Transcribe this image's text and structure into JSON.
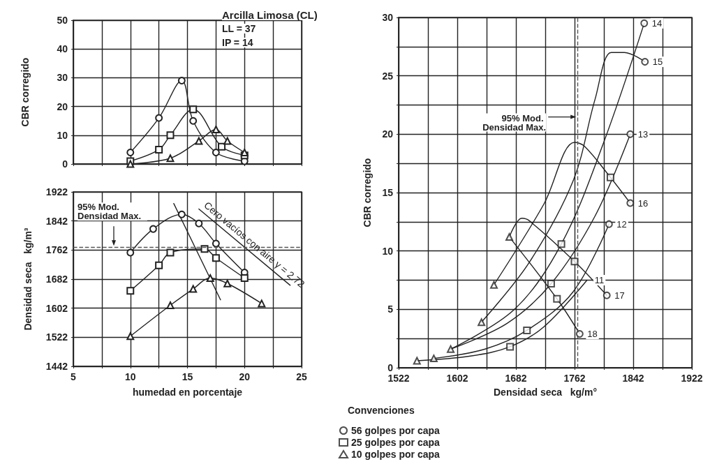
{
  "chart_data": [
    {
      "type": "line",
      "ylabel": "CBR corregido",
      "annotations": [
        "Arcilla Limosa (CL)",
        "LL = 37",
        "IP = 14"
      ],
      "xlim": [
        5,
        25
      ],
      "ylim": [
        0,
        50
      ],
      "xticks": [
        5,
        {
          "value": 7.5,
          "label": null
        },
        10,
        {
          "value": 12.5,
          "label": null
        },
        15,
        {
          "value": 17.5,
          "label": null
        },
        20,
        {
          "value": 22.5,
          "label": null
        },
        25
      ],
      "yticks": [
        0,
        10,
        20,
        30,
        40,
        50
      ],
      "tick_labels": "y",
      "grid": true,
      "series": [
        {
          "marker": "circle",
          "color": "#222222",
          "x": [
            10,
            12.5,
            14.5,
            15.5,
            17.5,
            20
          ],
          "values": [
            4,
            16,
            29,
            15,
            4,
            1
          ]
        },
        {
          "marker": "square",
          "color": "#222222",
          "x": [
            10,
            12.5,
            13.5,
            15.5,
            18,
            20
          ],
          "values": [
            1,
            5,
            10,
            19,
            6,
            3
          ]
        },
        {
          "marker": "triangle",
          "color": "#222222",
          "x": [
            10,
            13.5,
            16,
            17.5,
            18.5,
            20
          ],
          "values": [
            0,
            2,
            8,
            12,
            8,
            4
          ]
        }
      ]
    },
    {
      "type": "line",
      "xlabel": "humedad en porcentaje",
      "ylabel": "Densidad seca   kg/m³",
      "xlim": [
        5,
        25
      ],
      "ylim": [
        1442,
        1922
      ],
      "xticks": [
        5,
        {
          "value": 7.5,
          "label": null
        },
        10,
        {
          "value": 12.5,
          "label": null
        },
        15,
        {
          "value": 17.5,
          "label": null
        },
        20,
        {
          "value": 22.5,
          "label": null
        },
        25
      ],
      "yticks": [
        1442,
        1522,
        1602,
        1682,
        1762,
        1842,
        1922
      ],
      "grid": true,
      "annotations": [
        "Cero vacíos con aire γ = 2.72"
      ],
      "ref_lines": [
        {
          "axis": "y",
          "value": 1770,
          "label": "95% Mod. Densidad Max.",
          "line_style": "dashed",
          "color": "#555555"
        }
      ],
      "series": [
        {
          "marker": "circle",
          "color": "#222222",
          "x": [
            10,
            12,
            14.5,
            16,
            17.5,
            20
          ],
          "values": [
            1755,
            1820,
            1860,
            1835,
            1780,
            1700
          ]
        },
        {
          "marker": "square",
          "color": "#222222",
          "x": [
            10,
            12.5,
            13.5,
            16.5,
            17.5,
            20
          ],
          "values": [
            1650,
            1720,
            1755,
            1765,
            1740,
            1685
          ]
        },
        {
          "marker": "triangle",
          "color": "#222222",
          "x": [
            10,
            13.5,
            15.5,
            17,
            18.5,
            21.5
          ],
          "values": [
            1525,
            1610,
            1655,
            1685,
            1670,
            1615
          ]
        },
        {
          "marker": "none",
          "color": "#222222",
          "x": [
            16,
            24
          ],
          "values": [
            1875,
            1665
          ]
        },
        {
          "marker": "none",
          "color": "#222222",
          "x": [
            13.8,
            17.9
          ],
          "values": [
            1890,
            1625
          ]
        }
      ]
    },
    {
      "type": "line",
      "xlabel": "Densidad seca   kg/m°",
      "ylabel": "CBR corregido",
      "xlim": [
        1522,
        1922
      ],
      "ylim": [
        0,
        30
      ],
      "xticks": [
        1522,
        {
          "value": 1562,
          "label": null
        },
        1602,
        {
          "value": 1642,
          "label": null
        },
        1682,
        {
          "value": 1722,
          "label": null
        },
        1762,
        {
          "value": 1802,
          "label": null
        },
        1842,
        {
          "value": 1882,
          "label": null
        },
        1922
      ],
      "yticks": [
        0,
        {
          "value": 2.5,
          "label": null
        },
        5,
        {
          "value": 7.5,
          "label": null
        },
        10,
        {
          "value": 12.5,
          "label": null
        },
        15,
        {
          "value": 17.5,
          "label": null
        },
        20,
        {
          "value": 22.5,
          "label": null
        },
        25,
        {
          "value": 27.5,
          "label": null
        },
        30
      ],
      "grid": true,
      "legend": "bottom",
      "legend_title": "Convenciones",
      "ref_lines": [
        {
          "axis": "x",
          "value": 1766,
          "label": "95% Mod. Densidad Max.",
          "line_style": "dashed",
          "color": "#555555"
        }
      ],
      "series": [
        {
          "name": "11",
          "marker": "none",
          "color": "#222222",
          "x": [
            1547,
            1620,
            1674,
            1720,
            1779
          ],
          "values": [
            0.6,
            1.0,
            1.8,
            3.5,
            7.5
          ]
        },
        {
          "name": "12",
          "marker": "none",
          "color": "#222222",
          "x": [
            1570,
            1640,
            1697,
            1760,
            1809
          ],
          "values": [
            0.8,
            1.6,
            3.2,
            6.5,
            12.3
          ]
        },
        {
          "name": "13",
          "marker": "none",
          "color": "#222222",
          "x": [
            1593,
            1670,
            1730,
            1790,
            1838
          ],
          "values": [
            1.6,
            3.8,
            7.2,
            13,
            20
          ]
        },
        {
          "name": "14",
          "marker": "none",
          "color": "#222222",
          "x": [
            1593,
            1680,
            1744,
            1800,
            1857
          ],
          "values": [
            1.6,
            5,
            10.6,
            19,
            29.5
          ]
        },
        {
          "name": "15",
          "marker": "none",
          "color": "#222222",
          "x": [
            1635,
            1700,
            1760,
            1790,
            1812,
            1830,
            1858
          ],
          "values": [
            3.9,
            9,
            16,
            23,
            27,
            27,
            26.2
          ]
        },
        {
          "name": "16",
          "marker": "none",
          "color": "#222222",
          "x": [
            1652,
            1720,
            1762,
            1775,
            1811,
            1838
          ],
          "values": [
            7.1,
            14,
            19.3,
            19,
            16.3,
            14.1
          ]
        },
        {
          "name": "17",
          "marker": "none",
          "color": "#222222",
          "x": [
            1673,
            1690,
            1700,
            1762,
            1806
          ],
          "values": [
            11.2,
            12.8,
            12.6,
            9.1,
            6.2
          ]
        },
        {
          "name": "18",
          "marker": "none",
          "color": "#222222",
          "x": [
            1673,
            1738,
            1769
          ],
          "values": [
            11.2,
            5.9,
            2.9
          ]
        },
        {
          "name": "56 golpes por capa",
          "type": "scatter",
          "marker": "circle",
          "color": "#222222",
          "x": [
            1809,
            1838,
            1857,
            1858,
            1838,
            1806,
            1769
          ],
          "values": [
            12.3,
            20,
            29.5,
            26.2,
            14.1,
            6.2,
            2.9
          ]
        },
        {
          "name": "25 golpes por capa",
          "type": "scatter",
          "marker": "square",
          "color": "#222222",
          "x": [
            1674,
            1697,
            1730,
            1744,
            1811,
            1762,
            1738
          ],
          "values": [
            1.8,
            3.2,
            7.2,
            10.6,
            16.3,
            9.1,
            5.9
          ]
        },
        {
          "name": "10 golpes por capa",
          "type": "scatter",
          "marker": "triangle",
          "color": "#222222",
          "x": [
            1547,
            1570,
            1593,
            1635,
            1652,
            1673
          ],
          "values": [
            0.6,
            0.8,
            1.6,
            3.9,
            7.1,
            11.2
          ]
        }
      ]
    }
  ]
}
